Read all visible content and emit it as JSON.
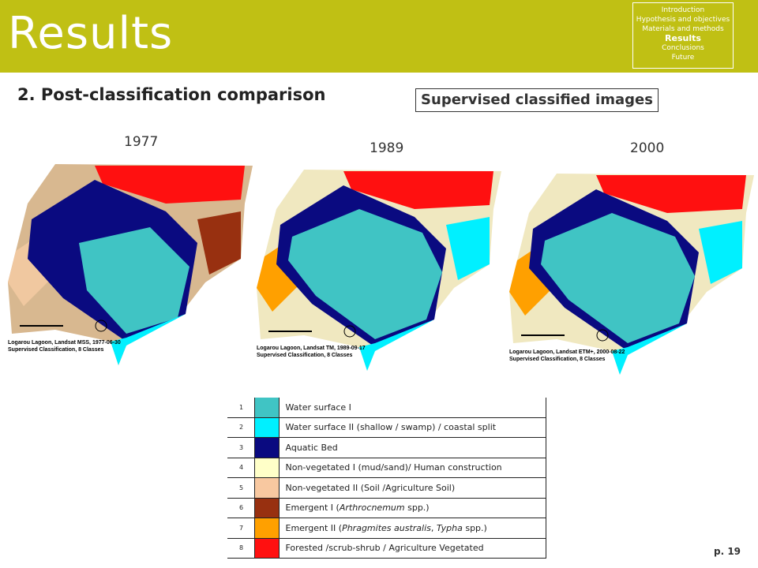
{
  "header": {
    "title": "Results"
  },
  "nav": {
    "items": [
      {
        "text": "Introduction",
        "current": false
      },
      {
        "text": "Hypothesis and objectives",
        "current": false
      },
      {
        "text": "Materials and methods",
        "current": false
      },
      {
        "text": "Results",
        "current": true
      },
      {
        "text": "Conclusions",
        "current": false
      },
      {
        "text": "Future",
        "current": false
      }
    ]
  },
  "subtitle": "2. Post-classification comparison",
  "boxed_heading": "Supervised classified images",
  "maps": [
    {
      "year": "1977",
      "caption": [
        "Logarou Lagoon, Landsat MSS, 1977-06-30",
        "Supervised Classification, 8 Classes"
      ]
    },
    {
      "year": "1989",
      "caption": [
        "Logarou Lagoon, Landsat TM, 1989-09-17",
        "Supervised Classification, 8 Classes"
      ]
    },
    {
      "year": "2000",
      "caption": [
        "Logarou Lagoon, Landsat ETM+, 2000-08-22",
        "Supervised Classification, 8 Classes"
      ]
    }
  ],
  "legend": {
    "rows": [
      {
        "number": "1",
        "color": "#40c4c4",
        "label": [
          {
            "text": "Water surface I",
            "italic": false
          }
        ]
      },
      {
        "number": "2",
        "color": "#00f0ff",
        "label": [
          {
            "text": "Water surface II (shallow / swamp) / coastal split",
            "italic": false
          }
        ]
      },
      {
        "number": "3",
        "color": "#0a0a80",
        "label": [
          {
            "text": "Aquatic Bed",
            "italic": false
          }
        ]
      },
      {
        "number": "4",
        "color": "#ffffc8",
        "label": [
          {
            "text": "Non-vegetated I (mud/sand)/ Human construction",
            "italic": false
          }
        ]
      },
      {
        "number": "5",
        "color": "#f8c8a0",
        "label": [
          {
            "text": "Non-vegetated II (Soil /Agriculture Soil)",
            "italic": false
          }
        ]
      },
      {
        "number": "6",
        "color": "#983010",
        "label": [
          {
            "text": "Emergent I (",
            "italic": false
          },
          {
            "text": "Arthrocnemum",
            "italic": true
          },
          {
            "text": " spp.)",
            "italic": false
          }
        ]
      },
      {
        "number": "7",
        "color": "#ffa000",
        "label": [
          {
            "text": "Emergent II (",
            "italic": false
          },
          {
            "text": "Phragmites australis",
            "italic": true
          },
          {
            "text": ", ",
            "italic": false
          },
          {
            "text": "Typha",
            "italic": true
          },
          {
            "text": " spp.)",
            "italic": false
          }
        ]
      },
      {
        "number": "8",
        "color": "#ff1010",
        "label": [
          {
            "text": "Forested /scrub-shrub / Agriculture Vegetated",
            "italic": false
          }
        ]
      }
    ]
  },
  "page_number": "p. 19"
}
